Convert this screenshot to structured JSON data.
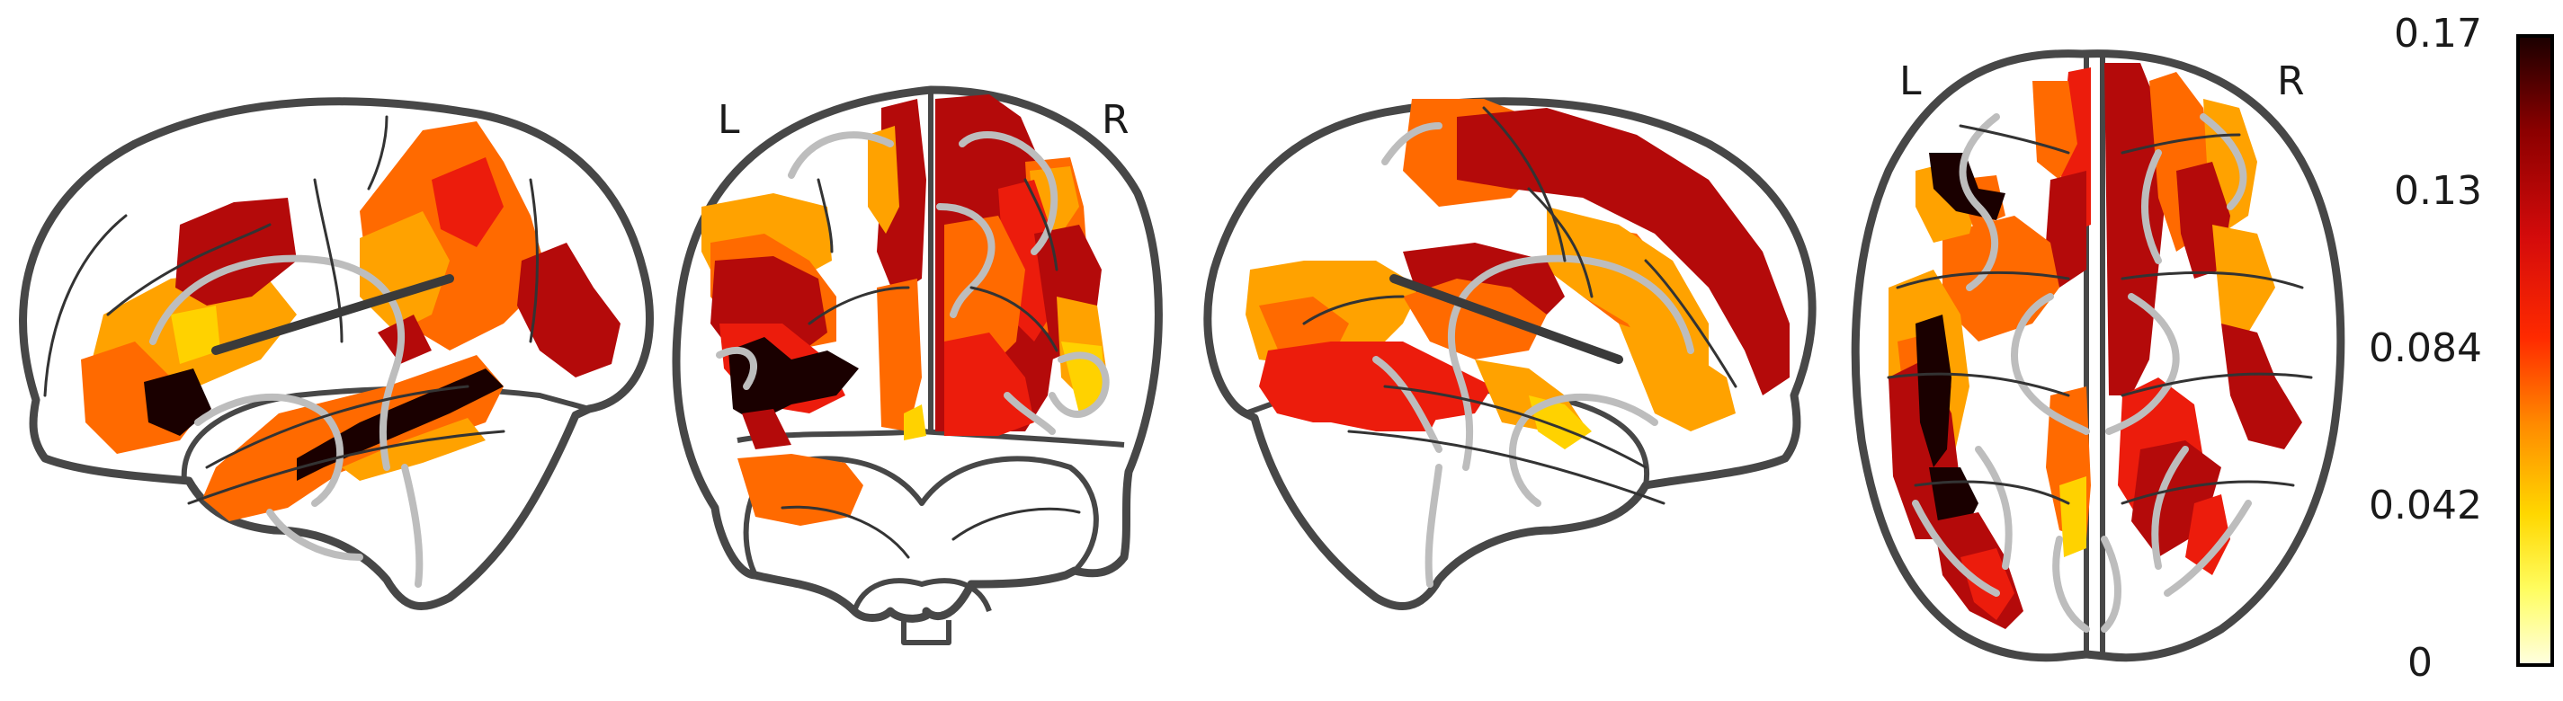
{
  "figure": {
    "views": [
      {
        "name": "left-sagittal"
      },
      {
        "name": "coronal",
        "left_label": "L",
        "right_label": "R"
      },
      {
        "name": "right-sagittal"
      },
      {
        "name": "axial",
        "left_label": "L",
        "right_label": "R"
      }
    ],
    "colorbar": {
      "colormap": "hot (reversed)",
      "min": 0,
      "max": 0.17,
      "ticks": [
        "0.17",
        "0.13",
        "0.084",
        "0.042",
        "0"
      ],
      "colors": [
        "#1a0000",
        "#8b0000",
        "#d40b0b",
        "#ff2a00",
        "#ff8c00",
        "#ffd700",
        "#fffd60",
        "#ffffe0"
      ]
    },
    "overlay_colors": {
      "darkest": "#1a0000",
      "dark_red": "#b40a0a",
      "red": "#ec1c0c",
      "orange": "#ff6a00",
      "amber": "#ffa200",
      "yellow": "#ffd200"
    }
  }
}
